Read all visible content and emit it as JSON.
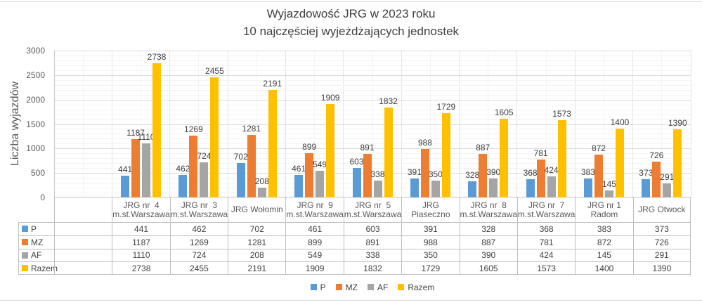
{
  "title": {
    "line1": "Wyjazdowość JRG w 2023 roku",
    "line2": "10 najczęściej wyjeżdżających jednostek"
  },
  "y_axis": {
    "title": "Liczba wyjazdów",
    "tick_labels": [
      "0",
      "500",
      "1000",
      "1500",
      "2000",
      "2500",
      "3000"
    ]
  },
  "legend": [
    "P",
    "MZ",
    "AF",
    "Razem"
  ],
  "colors": {
    "P": "#5B9BD5",
    "MZ": "#ED7D31",
    "AF": "#A5A5A5",
    "Razem": "#FFC000",
    "text_primary": "#404040",
    "text_secondary": "#595959",
    "table_border": "#BFBFBF",
    "gridline_major": "#DADADA",
    "gridline_minor": "#F3F3F3"
  },
  "chart_data": {
    "type": "bar",
    "title": "Wyjazdowość JRG w 2023 roku — 10 najczęściej wyjeżdżających jednostek",
    "xlabel": "",
    "ylabel": "Liczba wyjazdów",
    "ylim": [
      0,
      3000
    ],
    "major_unit": 500,
    "minor_unit": 100,
    "grid": true,
    "legend_position": "bottom",
    "data_table": true,
    "data_labels": true,
    "leading_empty_category": true,
    "categories": [
      "JRG nr  4\nm.st.Warszawa",
      "JRG nr  3\nm.st.Warszawa",
      "JRG Wołomin",
      "JRG nr  9\nm.st.Warszawa",
      "JRG nr  5\nm.st.Warszawa",
      "JRG Piaseczno",
      "JRG nr  8\nm.st.Warszawa",
      "JRG nr  7\nm.st.Warszawa",
      "JRG nr 1\nRadom",
      "JRG Otwock"
    ],
    "series": [
      {
        "name": "P",
        "color": "#5B9BD5",
        "values": [
          441,
          462,
          702,
          461,
          603,
          391,
          328,
          368,
          383,
          373
        ]
      },
      {
        "name": "MZ",
        "color": "#ED7D31",
        "values": [
          1187,
          1269,
          1281,
          899,
          891,
          988,
          887,
          781,
          872,
          726
        ]
      },
      {
        "name": "AF",
        "color": "#A5A5A5",
        "values": [
          1110,
          724,
          208,
          549,
          338,
          350,
          390,
          424,
          145,
          291
        ]
      },
      {
        "name": "Razem",
        "color": "#FFC000",
        "values": [
          2738,
          2455,
          2191,
          1909,
          1832,
          1729,
          1605,
          1573,
          1400,
          1390
        ]
      }
    ]
  }
}
